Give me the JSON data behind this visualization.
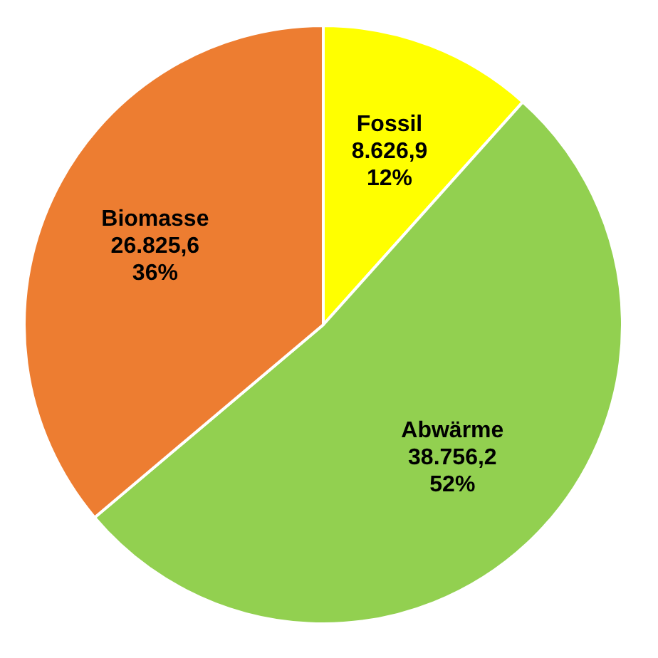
{
  "chart_data": {
    "type": "pie",
    "categories": [
      "Fossil",
      "Abwärme",
      "Biomasse"
    ],
    "values": [
      8626.9,
      38756.2,
      26825.6
    ],
    "colors": [
      "#ffff00",
      "#92d050",
      "#ed7d31"
    ],
    "value_labels": [
      "8.626,9\n12%",
      "38.756,2\n52%",
      "26.825,6\n36%"
    ],
    "legend": false
  }
}
